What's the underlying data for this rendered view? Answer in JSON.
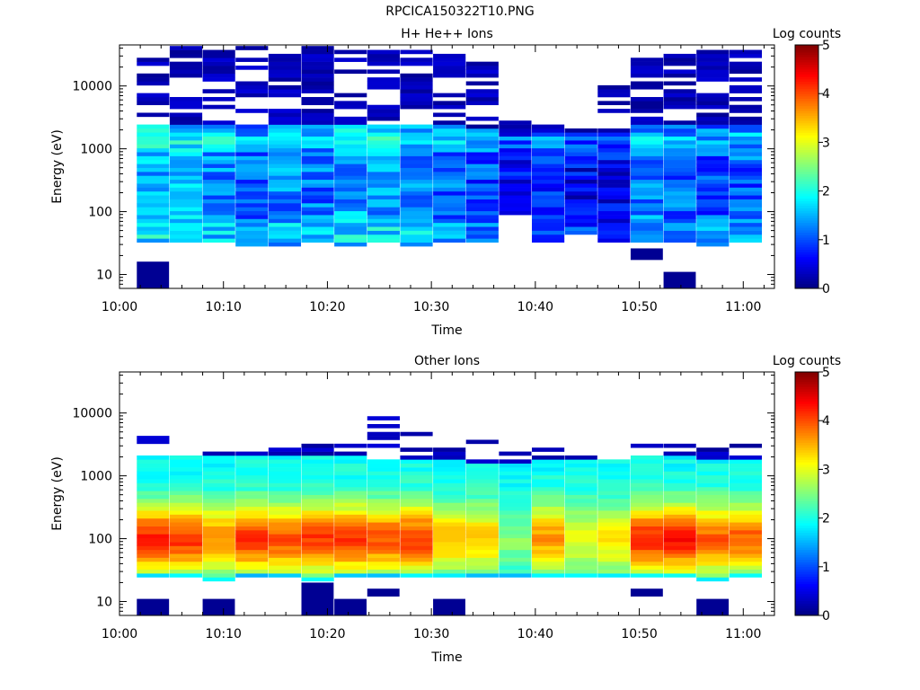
{
  "page": {
    "title": "RPCICA150322T10.PNG"
  },
  "colors": {
    "colormap": [
      "#00007f",
      "#0000ff",
      "#007fff",
      "#00ffff",
      "#7fff7f",
      "#ffff00",
      "#ff7f00",
      "#ff0000",
      "#7f0000"
    ]
  },
  "chart_data": [
    {
      "type": "heatmap",
      "title": "H+ He++ Ions",
      "xlabel": "Time",
      "ylabel": "Energy (eV)",
      "yscale": "log",
      "ylim": [
        6,
        45000
      ],
      "xlim_minutes": [
        0,
        63
      ],
      "xticks": [
        "10:00",
        "10:10",
        "10:20",
        "10:30",
        "10:40",
        "10:50",
        "11:00"
      ],
      "yticks": [
        "10",
        "100",
        "1000",
        "10000"
      ],
      "colorbar": {
        "label": "Log counts",
        "min": 0,
        "max": 5,
        "ticks": [
          "0",
          "1",
          "2",
          "3",
          "4",
          "5"
        ]
      },
      "time_bins_start": [
        "10:01:40",
        "10:04:50",
        "10:08:00",
        "10:11:10",
        "10:14:20",
        "10:17:30",
        "10:20:40",
        "10:23:50",
        "10:27:00",
        "10:30:10",
        "10:33:20",
        "10:36:30",
        "10:39:40",
        "10:42:50",
        "10:46:00",
        "10:49:10",
        "10:52:20",
        "10:55:30",
        "10:58:40"
      ],
      "high_energy_max_eV": [
        40000,
        42000,
        38000,
        42000,
        42000,
        42000,
        42000,
        42000,
        40000,
        40000,
        28000,
        3500,
        2600,
        2400,
        14000,
        40000,
        40000,
        36000,
        38000
      ],
      "dense_band_top_eV": [
        2400,
        2400,
        2300,
        2300,
        2300,
        2400,
        2400,
        2400,
        2400,
        2400,
        2200,
        1600,
        1700,
        1700,
        1700,
        2400,
        2400,
        2400,
        2400
      ],
      "band_log_level": [
        2.0,
        2.0,
        1.8,
        1.6,
        1.8,
        1.7,
        1.9,
        1.9,
        1.8,
        1.6,
        1.5,
        1.2,
        1.3,
        1.1,
        1.1,
        1.7,
        1.6,
        1.5,
        1.6
      ],
      "low_energy_cutoff_eV": [
        32,
        32,
        32,
        28,
        28,
        32,
        28,
        32,
        28,
        32,
        32,
        95,
        32,
        42,
        32,
        32,
        32,
        28,
        32
      ],
      "low_energy_isolated": [
        {
          "time": "10:01:40",
          "energy_range_eV": [
            6,
            16
          ],
          "log_counts": 0.1
        },
        {
          "time": "10:49:10",
          "energy_range_eV": [
            17,
            26
          ],
          "log_counts": 0.1
        },
        {
          "time": "10:52:20",
          "energy_range_eV": [
            6,
            11
          ],
          "log_counts": 0.1
        }
      ]
    },
    {
      "type": "heatmap",
      "title": "Other Ions",
      "xlabel": "Time",
      "ylabel": "Energy (eV)",
      "yscale": "log",
      "ylim": [
        6,
        45000
      ],
      "xlim_minutes": [
        0,
        63
      ],
      "xticks": [
        "10:00",
        "10:10",
        "10:20",
        "10:30",
        "10:40",
        "10:50",
        "11:00"
      ],
      "yticks": [
        "10",
        "100",
        "1000",
        "10000"
      ],
      "colorbar": {
        "label": "Log counts",
        "min": 0,
        "max": 5,
        "ticks": [
          "0",
          "1",
          "2",
          "3",
          "4",
          "5"
        ]
      },
      "time_bins_start": [
        "10:01:40",
        "10:04:50",
        "10:08:00",
        "10:11:10",
        "10:14:20",
        "10:17:30",
        "10:20:40",
        "10:23:50",
        "10:27:00",
        "10:30:10",
        "10:33:20",
        "10:36:30",
        "10:39:40",
        "10:42:50",
        "10:46:00",
        "10:49:10",
        "10:52:20",
        "10:55:30",
        "10:58:40"
      ],
      "high_energy_max_eV": [
        4500,
        2000,
        3000,
        2900,
        2700,
        3800,
        4200,
        10000,
        4700,
        4800,
        4500,
        2900,
        3800,
        2000,
        1800,
        3200,
        3200,
        3200,
        3200
      ],
      "dense_band_top_eV": [
        2000,
        2000,
        2000,
        2000,
        2000,
        2000,
        2000,
        1800,
        1800,
        1700,
        1600,
        1500,
        1700,
        1700,
        1700,
        2000,
        2000,
        1900,
        1900
      ],
      "peak_log_counts": [
        4.2,
        4.1,
        3.7,
        4.1,
        4.0,
        4.1,
        4.2,
        4.0,
        4.1,
        3.5,
        3.4,
        2.5,
        3.6,
        3.0,
        3.2,
        4.2,
        4.3,
        3.9,
        3.9
      ],
      "low_energy_cutoff_eV": [
        24,
        24,
        20,
        24,
        24,
        20,
        24,
        24,
        24,
        24,
        24,
        24,
        24,
        24,
        24,
        24,
        24,
        20,
        24
      ],
      "low_energy_isolated": [
        {
          "time": "10:01:40",
          "energy_range_eV": [
            6,
            11
          ],
          "log_counts": 0.1
        },
        {
          "time": "10:08:00",
          "energy_range_eV": [
            6,
            11
          ],
          "log_counts": 0.1
        },
        {
          "time": "10:17:30",
          "energy_range_eV": [
            6,
            20
          ],
          "log_counts": 0.1
        },
        {
          "time": "10:20:40",
          "energy_range_eV": [
            6,
            11
          ],
          "log_counts": 0.1
        },
        {
          "time": "10:23:50",
          "energy_range_eV": [
            12,
            16
          ],
          "log_counts": 0.1
        },
        {
          "time": "10:30:10",
          "energy_range_eV": [
            6,
            11
          ],
          "log_counts": 0.1
        },
        {
          "time": "10:49:10",
          "energy_range_eV": [
            12,
            16
          ],
          "log_counts": 0.1
        },
        {
          "time": "10:55:30",
          "energy_range_eV": [
            6,
            11
          ],
          "log_counts": 0.1
        }
      ]
    }
  ]
}
